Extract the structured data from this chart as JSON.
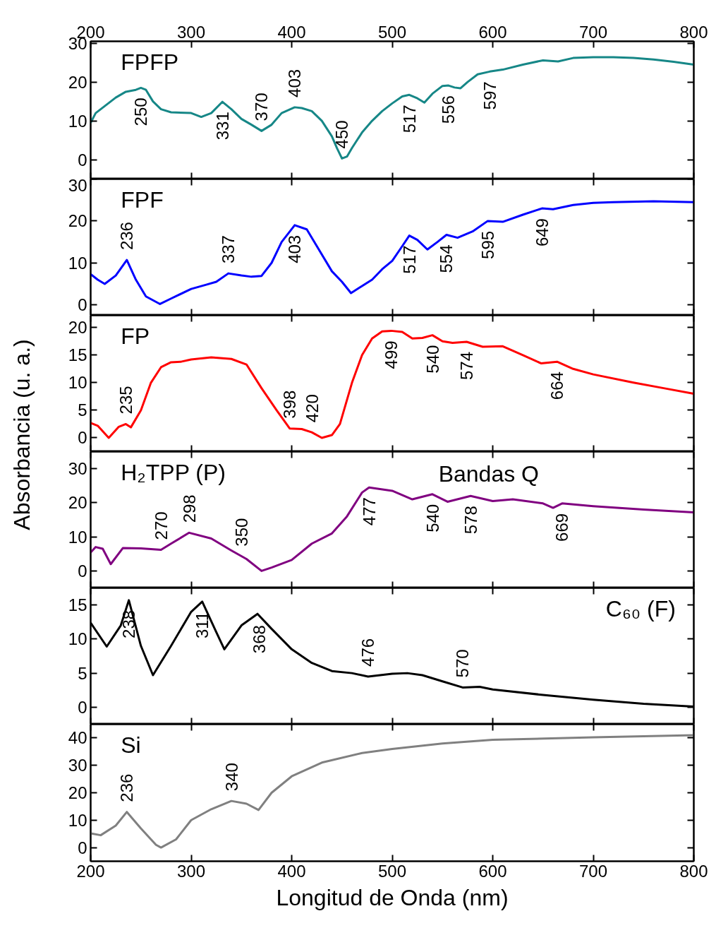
{
  "chart_data": [
    {
      "type": "line",
      "xlim": [
        200,
        800
      ],
      "xticks": [
        200,
        300,
        400,
        500,
        600,
        700,
        800
      ],
      "x2lim": [
        200,
        800
      ],
      "x2ticks": [
        200,
        300,
        400,
        500,
        600,
        700,
        800
      ],
      "ylim": [
        -5,
        30.5
      ],
      "yticks": [
        0,
        10,
        20,
        30
      ],
      "tick_labels": "y",
      "legend": "top left",
      "series": [
        {
          "name": "FPFP",
          "color": "#168787",
          "x": [
            200,
            205,
            215,
            225,
            235,
            245,
            250,
            255,
            262,
            270,
            280,
            300,
            310,
            320,
            331,
            340,
            350,
            360,
            370,
            380,
            390,
            403,
            410,
            420,
            430,
            440,
            445,
            450,
            455,
            460,
            470,
            480,
            490,
            500,
            510,
            517,
            525,
            532,
            540,
            550,
            556,
            562,
            568,
            575,
            585,
            597,
            610,
            630,
            650,
            665,
            680,
            700,
            720,
            740,
            760,
            780,
            800
          ],
          "values": [
            9.5,
            12,
            14,
            16,
            17.5,
            18,
            18.5,
            18,
            15,
            13,
            12.2,
            12,
            11,
            12,
            14.9,
            13,
            10.5,
            9,
            7.4,
            9,
            12,
            13.5,
            13.3,
            12.5,
            10,
            6,
            3,
            0.3,
            0.8,
            3,
            7,
            10,
            12.5,
            14.5,
            16.3,
            16.7,
            15.8,
            14.7,
            17,
            19,
            19.1,
            18.6,
            18.4,
            20,
            22,
            22.7,
            23.2,
            24.5,
            25.6,
            25.3,
            26.2,
            26.4,
            26.4,
            26.2,
            25.8,
            25.2,
            24.5
          ]
        }
      ],
      "annotations": [
        {
          "text": "250",
          "x": 250,
          "y": 18.5
        },
        {
          "text": "331",
          "x": 331,
          "y": 14.9
        },
        {
          "text": "370",
          "x": 370,
          "y": 7.4
        },
        {
          "text": "403",
          "x": 403,
          "y": 13.5
        },
        {
          "text": "450",
          "x": 450,
          "y": 0.3
        },
        {
          "text": "517",
          "x": 517,
          "y": 16.7
        },
        {
          "text": "556",
          "x": 556,
          "y": 19.1
        },
        {
          "text": "597",
          "x": 597,
          "y": 22.7
        }
      ]
    },
    {
      "type": "line",
      "xlim": [
        200,
        800
      ],
      "xticks": [
        200,
        300,
        400,
        500,
        600,
        700,
        800
      ],
      "ylim": [
        -2.5,
        30
      ],
      "yticks": [
        0,
        10,
        20,
        30
      ],
      "tick_labels": "y",
      "legend": "top left",
      "series": [
        {
          "name": "FPF",
          "color": "#0000ff",
          "x": [
            200,
            207,
            214,
            225,
            236,
            245,
            255,
            269,
            280,
            300,
            315,
            325,
            337,
            350,
            360,
            370,
            380,
            390,
            403,
            415,
            425,
            440,
            450,
            459,
            470,
            480,
            490,
            500,
            510,
            517,
            525,
            535,
            545,
            554,
            565,
            580,
            595,
            610,
            630,
            649,
            660,
            680,
            700,
            720,
            760,
            800
          ],
          "values": [
            7.3,
            6,
            5,
            7,
            10.7,
            6,
            2,
            0.2,
            1.5,
            3.8,
            4.8,
            5.5,
            7.5,
            7,
            6.7,
            6.9,
            10,
            15,
            19,
            18,
            14,
            8,
            5.5,
            2.8,
            4.5,
            6,
            8.5,
            10.5,
            14,
            16.5,
            15.5,
            13.2,
            15,
            16.7,
            16,
            17.5,
            20,
            19.8,
            21.5,
            23,
            22.8,
            23.8,
            24.3,
            24.5,
            24.7,
            24.5
          ]
        }
      ],
      "annotations": [
        {
          "text": "236",
          "x": 236,
          "y": 10.7
        },
        {
          "text": "337",
          "x": 337,
          "y": 7.5
        },
        {
          "text": "403",
          "x": 403,
          "y": 19
        },
        {
          "text": "517",
          "x": 517,
          "y": 16.5
        },
        {
          "text": "554",
          "x": 554,
          "y": 16.7
        },
        {
          "text": "595",
          "x": 595,
          "y": 20
        },
        {
          "text": "649",
          "x": 649,
          "y": 23
        }
      ]
    },
    {
      "type": "line",
      "xlim": [
        200,
        800
      ],
      "xticks": [
        200,
        300,
        400,
        500,
        600,
        700,
        800
      ],
      "ylim": [
        -2.5,
        22.2
      ],
      "yticks": [
        0,
        5,
        10,
        15,
        20
      ],
      "tick_labels": "y",
      "legend": "top left",
      "ylabel": "Absorbancia (u. a.)",
      "series": [
        {
          "name": "FP",
          "color": "#ff0000",
          "x": [
            200,
            207,
            218,
            228,
            235,
            240,
            250,
            260,
            270,
            280,
            290,
            300,
            320,
            340,
            355,
            370,
            385,
            398,
            410,
            420,
            430,
            440,
            448,
            460,
            470,
            480,
            490,
            499,
            510,
            520,
            530,
            540,
            550,
            560,
            574,
            590,
            610,
            630,
            648,
            664,
            680,
            700,
            740,
            770,
            800
          ],
          "values": [
            2.7,
            2.2,
            0,
            2,
            2.5,
            1.9,
            5,
            10,
            12.8,
            13.7,
            13.8,
            14.2,
            14.6,
            14.3,
            13.3,
            9,
            5,
            1.7,
            1.6,
            1,
            0,
            0.5,
            2.5,
            10,
            15,
            18,
            19.3,
            19.4,
            19.2,
            18,
            18.1,
            18.6,
            17.5,
            17.2,
            17.4,
            16.5,
            16.6,
            15,
            13.5,
            13.8,
            12.5,
            11.5,
            10,
            9,
            8
          ]
        }
      ],
      "annotations": [
        {
          "text": "235",
          "x": 235,
          "y": 2.5
        },
        {
          "text": "398",
          "x": 398,
          "y": 1.7
        },
        {
          "text": "420",
          "x": 420,
          "y": 1
        },
        {
          "text": "499",
          "x": 499,
          "y": 19.4
        },
        {
          "text": "540",
          "x": 540,
          "y": 18.6
        },
        {
          "text": "574",
          "x": 574,
          "y": 17.4
        },
        {
          "text": "664",
          "x": 664,
          "y": 13.8
        }
      ]
    },
    {
      "type": "line",
      "xlim": [
        200,
        800
      ],
      "xticks": [
        200,
        300,
        400,
        500,
        600,
        700,
        800
      ],
      "ylim": [
        -5,
        35
      ],
      "yticks": [
        0,
        10,
        20,
        30
      ],
      "tick_labels": "y",
      "legend": "top left",
      "series": [
        {
          "name": "H₂TPP (P)",
          "color": "#800080",
          "x": [
            200,
            205,
            212,
            220,
            232,
            250,
            270,
            280,
            298,
            320,
            340,
            355,
            370,
            380,
            400,
            420,
            440,
            455,
            470,
            477,
            500,
            520,
            540,
            555,
            578,
            600,
            620,
            650,
            660,
            669,
            700,
            750,
            800
          ],
          "values": [
            5.4,
            7,
            6.5,
            2,
            6.7,
            6.6,
            6.2,
            8,
            11.2,
            9.5,
            6,
            3.5,
            0,
            1,
            3.2,
            8,
            11,
            16,
            23,
            24.5,
            23.5,
            21,
            22.5,
            20.3,
            22,
            20.5,
            21,
            19.8,
            18.5,
            19.8,
            19,
            18,
            17.2
          ]
        }
      ],
      "annotations": [
        {
          "text": "270",
          "x": 270,
          "y": 6.2
        },
        {
          "text": "298",
          "x": 298,
          "y": 11.2
        },
        {
          "text": "350",
          "x": 350,
          "y": 4.3
        },
        {
          "text": "477",
          "x": 477,
          "y": 24.5
        },
        {
          "text": "540",
          "x": 540,
          "y": 22.5
        },
        {
          "text": "578",
          "x": 578,
          "y": 22
        },
        {
          "text": "669",
          "x": 669,
          "y": 19.8
        },
        "Bandas Q"
      ]
    },
    {
      "type": "line",
      "xlim": [
        200,
        800
      ],
      "xticks": [
        200,
        300,
        400,
        500,
        600,
        700,
        800
      ],
      "ylim": [
        -2.5,
        17.5
      ],
      "yticks": [
        0,
        5,
        10,
        15
      ],
      "tick_labels": "y",
      "legend": "top right",
      "series": [
        {
          "name": "C₆₀ (F)",
          "color": "#000000",
          "x": [
            200,
            216,
            230,
            238,
            250,
            262,
            280,
            300,
            311,
            325,
            333,
            350,
            366,
            380,
            400,
            420,
            440,
            460,
            476,
            500,
            515,
            530,
            550,
            570,
            587,
            600,
            650,
            700,
            750,
            800
          ],
          "values": [
            12.4,
            8.9,
            12,
            15.7,
            9,
            4.7,
            9,
            14,
            15.5,
            11,
            8.5,
            12,
            13.7,
            11.5,
            8.5,
            6.5,
            5.3,
            5,
            4.5,
            4.9,
            5,
            4.7,
            3.8,
            2.9,
            3,
            2.6,
            1.8,
            1.1,
            0.5,
            0.1
          ]
        }
      ],
      "annotations": [
        {
          "text": "238",
          "x": 238,
          "y": 15.7
        },
        {
          "text": "311",
          "x": 311,
          "y": 15.5
        },
        {
          "text": "368",
          "x": 368,
          "y": 13.5
        },
        {
          "text": "476",
          "x": 476,
          "y": 4.5
        },
        {
          "text": "570",
          "x": 570,
          "y": 2.9
        }
      ]
    },
    {
      "type": "line",
      "xlim": [
        200,
        800
      ],
      "xticks": [
        200,
        300,
        400,
        500,
        600,
        700,
        800
      ],
      "ylim": [
        -5,
        45
      ],
      "yticks": [
        0,
        10,
        20,
        30,
        40
      ],
      "legend": "top left",
      "xlabel": "Longitud de Onda (nm)",
      "series": [
        {
          "name": "Si",
          "color": "#808080",
          "x": [
            200,
            210,
            225,
            236,
            250,
            265,
            270,
            285,
            300,
            320,
            340,
            355,
            367,
            380,
            400,
            430,
            470,
            500,
            550,
            600,
            700,
            800
          ],
          "values": [
            5.2,
            4.5,
            8,
            13,
            7,
            1,
            0,
            3,
            10,
            14,
            17,
            16,
            13.7,
            20,
            26,
            31,
            34.5,
            36,
            38,
            39.3,
            40.2,
            41
          ]
        }
      ],
      "annotations": [
        {
          "text": "236",
          "x": 236,
          "y": 13
        },
        {
          "text": "340",
          "x": 340,
          "y": 17
        }
      ]
    }
  ]
}
